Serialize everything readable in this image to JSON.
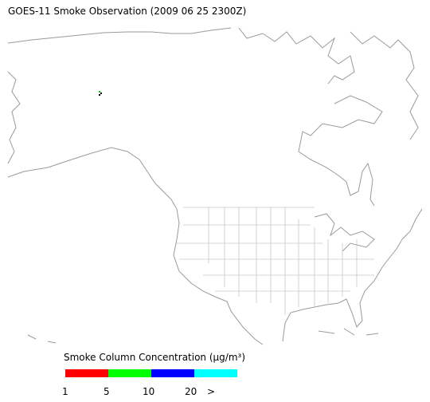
{
  "title": "GOES-11 Smoke Observation (2009 06 25  2300Z)",
  "legend": {
    "title": "Smoke Column Concentration (μg/m³)",
    "colors": [
      "#ff0000",
      "#00ff00",
      "#0000ff",
      "#00ffff"
    ],
    "labels": [
      "1",
      "5",
      "10",
      "20",
      ">"
    ]
  }
}
